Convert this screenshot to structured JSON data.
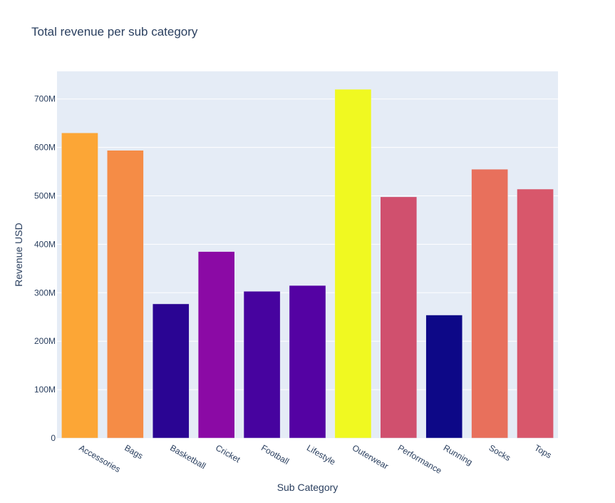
{
  "chart_data": {
    "type": "bar",
    "title": "Total revenue per sub category",
    "xlabel": "Sub Category",
    "ylabel": "Revenue USD",
    "categories": [
      "Accessories",
      "Bags",
      "Basketball",
      "Cricket",
      "Football",
      "Lifestyle",
      "Outerwear",
      "Performance",
      "Running",
      "Socks",
      "Tops"
    ],
    "values": [
      630,
      594,
      277,
      385,
      303,
      315,
      720,
      498,
      254,
      555,
      514
    ],
    "value_unit": "M",
    "ylim": [
      0,
      757
    ],
    "yticks": [
      0,
      100,
      200,
      300,
      400,
      500,
      600,
      700
    ],
    "ytick_labels": [
      "0",
      "100M",
      "200M",
      "300M",
      "400M",
      "500M",
      "600M",
      "700M"
    ],
    "colors": [
      "#fca636",
      "#f58c46",
      "#2a0593",
      "#8b0aa5",
      "#47039f",
      "#5402a3",
      "#f0f921",
      "#d0506e",
      "#0d0887",
      "#e8705c",
      "#d8576b"
    ],
    "grid": true,
    "plot_background": "#e5ecf6",
    "gridline_color": "#ffffff",
    "text_color": "#2a3f5f"
  }
}
